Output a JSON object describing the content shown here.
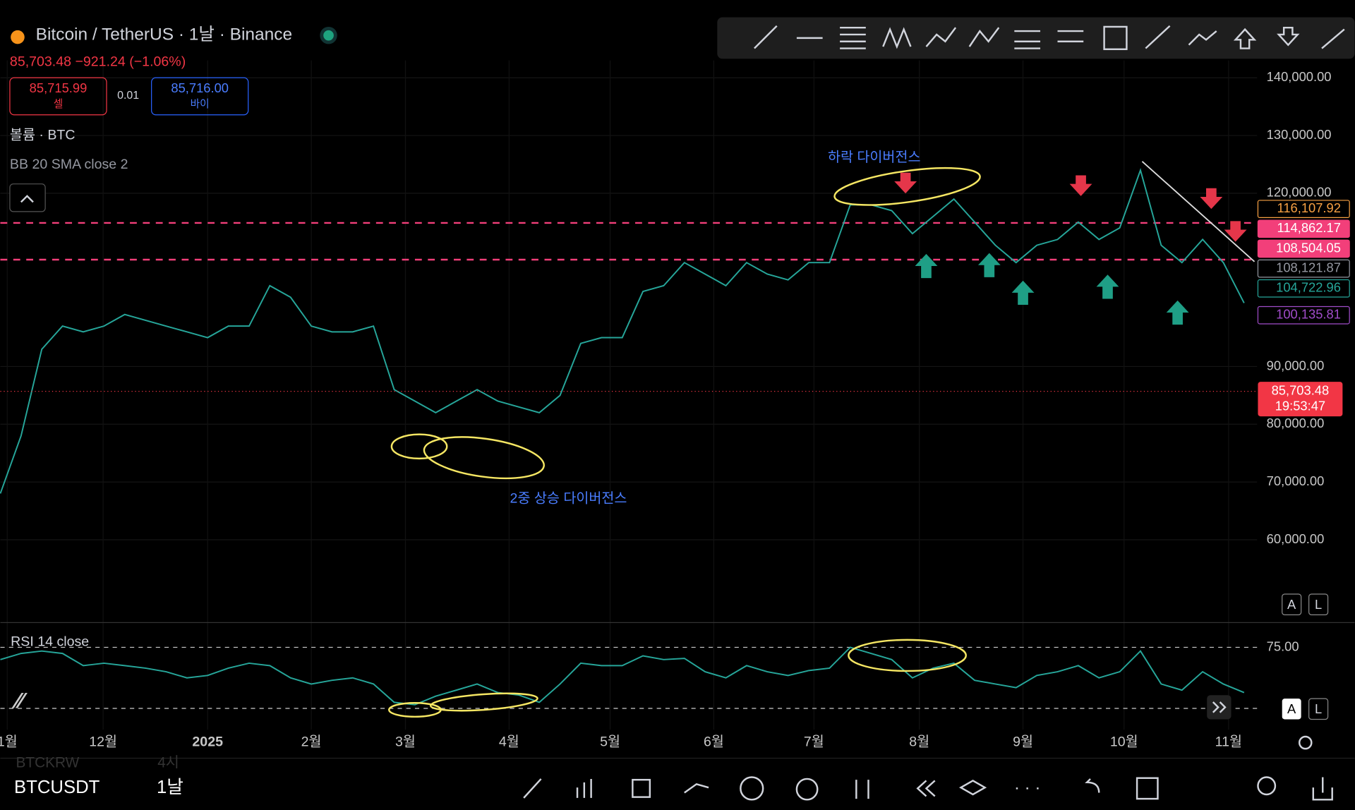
{
  "header": {
    "symbol_title": "Bitcoin / TetherUS · 1날 · Binance",
    "price_change": "85,703.48 −921.24 (−1.06%)",
    "sell_price": "85,715.99",
    "sell_label": "셀",
    "spread": "0.01",
    "buy_price": "85,716.00",
    "buy_label": "바이",
    "volume_label": "볼륨 · BTC",
    "bb_label": "BB 20 SMA close 2"
  },
  "chart_data": {
    "type": "line",
    "color": "#26a69a",
    "categories": [
      null,
      null,
      null,
      null,
      null,
      null,
      null,
      null,
      null,
      null,
      null,
      null,
      null,
      null,
      null,
      null,
      null,
      null,
      null,
      null,
      null,
      null,
      null,
      null,
      null,
      null,
      null,
      null,
      null,
      null,
      null,
      null,
      null,
      null,
      null,
      null,
      null,
      null,
      null,
      null,
      null,
      null,
      null,
      null,
      null,
      null,
      null,
      null,
      null,
      null,
      null,
      null,
      null,
      null,
      null,
      null,
      null,
      null,
      null,
      null,
      null
    ],
    "values": [
      68000,
      78000,
      93000,
      97000,
      96000,
      97000,
      99000,
      98000,
      97000,
      96000,
      95000,
      97000,
      97000,
      104000,
      102000,
      97000,
      96000,
      96000,
      97000,
      86000,
      84000,
      82000,
      84000,
      86000,
      84000,
      83000,
      82000,
      85000,
      94000,
      95000,
      95000,
      103000,
      104000,
      108000,
      106000,
      104000,
      108000,
      106000,
      105000,
      108000,
      108000,
      118000,
      118000,
      117000,
      113000,
      116000,
      119000,
      115000,
      111000,
      108000,
      111000,
      112000,
      115000,
      112000,
      114000,
      124000,
      111000,
      108000,
      112000,
      108000,
      101000
    ],
    "ylim": [
      45800,
      143000
    ],
    "yticks": [
      {
        "value": 140000,
        "label": "140,000.00"
      },
      {
        "value": 130000,
        "label": "130,000.00"
      },
      {
        "value": 120000,
        "label": "120,000.00"
      },
      {
        "value": 90000,
        "label": "90,000.00"
      },
      {
        "value": 80000,
        "label": "80,000.00"
      },
      {
        "value": 70000,
        "label": "70,000.00"
      },
      {
        "value": 60000,
        "label": "60,000.00"
      }
    ],
    "grid": true,
    "x_axis_labels": [
      "1월",
      "12월",
      "2025",
      "2월",
      "3월",
      "4월",
      "5월",
      "6월",
      "7월",
      "8월",
      "9월",
      "10월",
      "11월"
    ],
    "price_tags": [
      {
        "value": 116107.92,
        "label": "116,107.92",
        "color": "#f7a043",
        "filled": false
      },
      {
        "value": 114862.17,
        "label": "114,862.17",
        "color": "#f23f7a",
        "filled": true
      },
      {
        "value": 108504.05,
        "label": "108,504.05",
        "color": "#f23f7a",
        "filled": true
      },
      {
        "value": 108121.87,
        "label": "108,121.87",
        "color": "#9598a1",
        "filled": false
      },
      {
        "value": 104722.96,
        "label": "104,722.96",
        "color": "#26a69a",
        "filled": false
      },
      {
        "value": 100135.81,
        "label": "100,135.81",
        "color": "#a04cc9",
        "filled": false
      }
    ],
    "current_price": {
      "value": 85703.48,
      "label": "85,703.48",
      "color": "#f23645"
    },
    "countdown": "19:53:47",
    "annotations": [
      "하락 다이버전스",
      "2중 상승 다이버전스"
    ]
  },
  "rsi": {
    "type": "line",
    "title": "RSI 14 close",
    "color": "#26a69a",
    "values": [
      65,
      70,
      72,
      70,
      60,
      62,
      60,
      58,
      55,
      50,
      52,
      58,
      62,
      60,
      50,
      45,
      48,
      50,
      45,
      30,
      28,
      35,
      40,
      45,
      38,
      36,
      30,
      45,
      62,
      60,
      60,
      68,
      65,
      66,
      55,
      50,
      60,
      55,
      52,
      56,
      58,
      75,
      70,
      65,
      50,
      58,
      62,
      48,
      45,
      42,
      52,
      55,
      60,
      50,
      55,
      72,
      45,
      40,
      55,
      45,
      38
    ],
    "ylim": [
      7.6,
      92.4
    ],
    "yticks": [
      {
        "value": 75,
        "label": "75.00"
      }
    ],
    "levels": [
      75,
      25
    ]
  },
  "scale_buttons": [
    "A",
    "L"
  ],
  "footer": {
    "symbol": "BTCUSDT",
    "interval": "1날",
    "faded_symbol": "BTCKRW",
    "faded_interval": "4시"
  }
}
